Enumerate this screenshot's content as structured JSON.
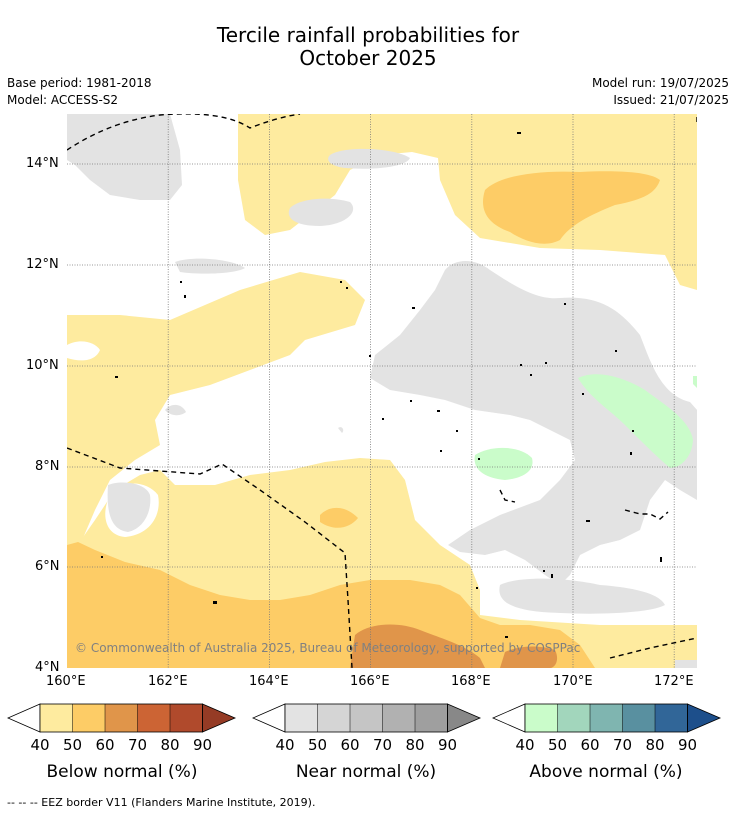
{
  "title": {
    "line1": "Tercile rainfall probabilities for",
    "line2": "October 2025"
  },
  "meta": {
    "base_period": "Base period: 1981-2018",
    "model": "Model: ACCESS-S2",
    "model_run": "Model run: 19/07/2025",
    "issued": "Issued: 21/07/2025"
  },
  "map": {
    "lon_range": [
      160,
      172.5
    ],
    "lat_range": [
      4,
      15
    ],
    "x_ticks": [
      "160°E",
      "162°E",
      "164°E",
      "166°E",
      "168°E",
      "170°E",
      "172°E"
    ],
    "y_ticks": [
      "14°N",
      "12°N",
      "10°N",
      "8°N",
      "6°N",
      "4°N"
    ],
    "copyright": "© Commonwealth of Australia 2025, Bureau of Meteorology, supported by COSPPac",
    "gridlines": true
  },
  "legends": [
    {
      "title": "Below normal (%)",
      "ticks": [
        "40",
        "50",
        "60",
        "70",
        "80",
        "90"
      ],
      "colors": [
        "#feeb9f",
        "#fdcc66",
        "#e0954a",
        "#cc6434",
        "#b04a2c",
        "#953b25"
      ]
    },
    {
      "title": "Near normal (%)",
      "ticks": [
        "40",
        "50",
        "60",
        "70",
        "80",
        "90"
      ],
      "colors": [
        "#e3e3e3",
        "#d5d5d5",
        "#c5c5c5",
        "#b1b1b1",
        "#9f9f9f",
        "#888888"
      ]
    },
    {
      "title": "Above normal (%)",
      "ticks": [
        "40",
        "50",
        "60",
        "70",
        "80",
        "90"
      ],
      "colors": [
        "#cafcca",
        "#a2d6bc",
        "#7fb5b0",
        "#5990a0",
        "#316698",
        "#1d4f8b"
      ]
    }
  ],
  "footnote": "-- -- -- EEZ border V11 (Flanders Marine Institute, 2019)."
}
